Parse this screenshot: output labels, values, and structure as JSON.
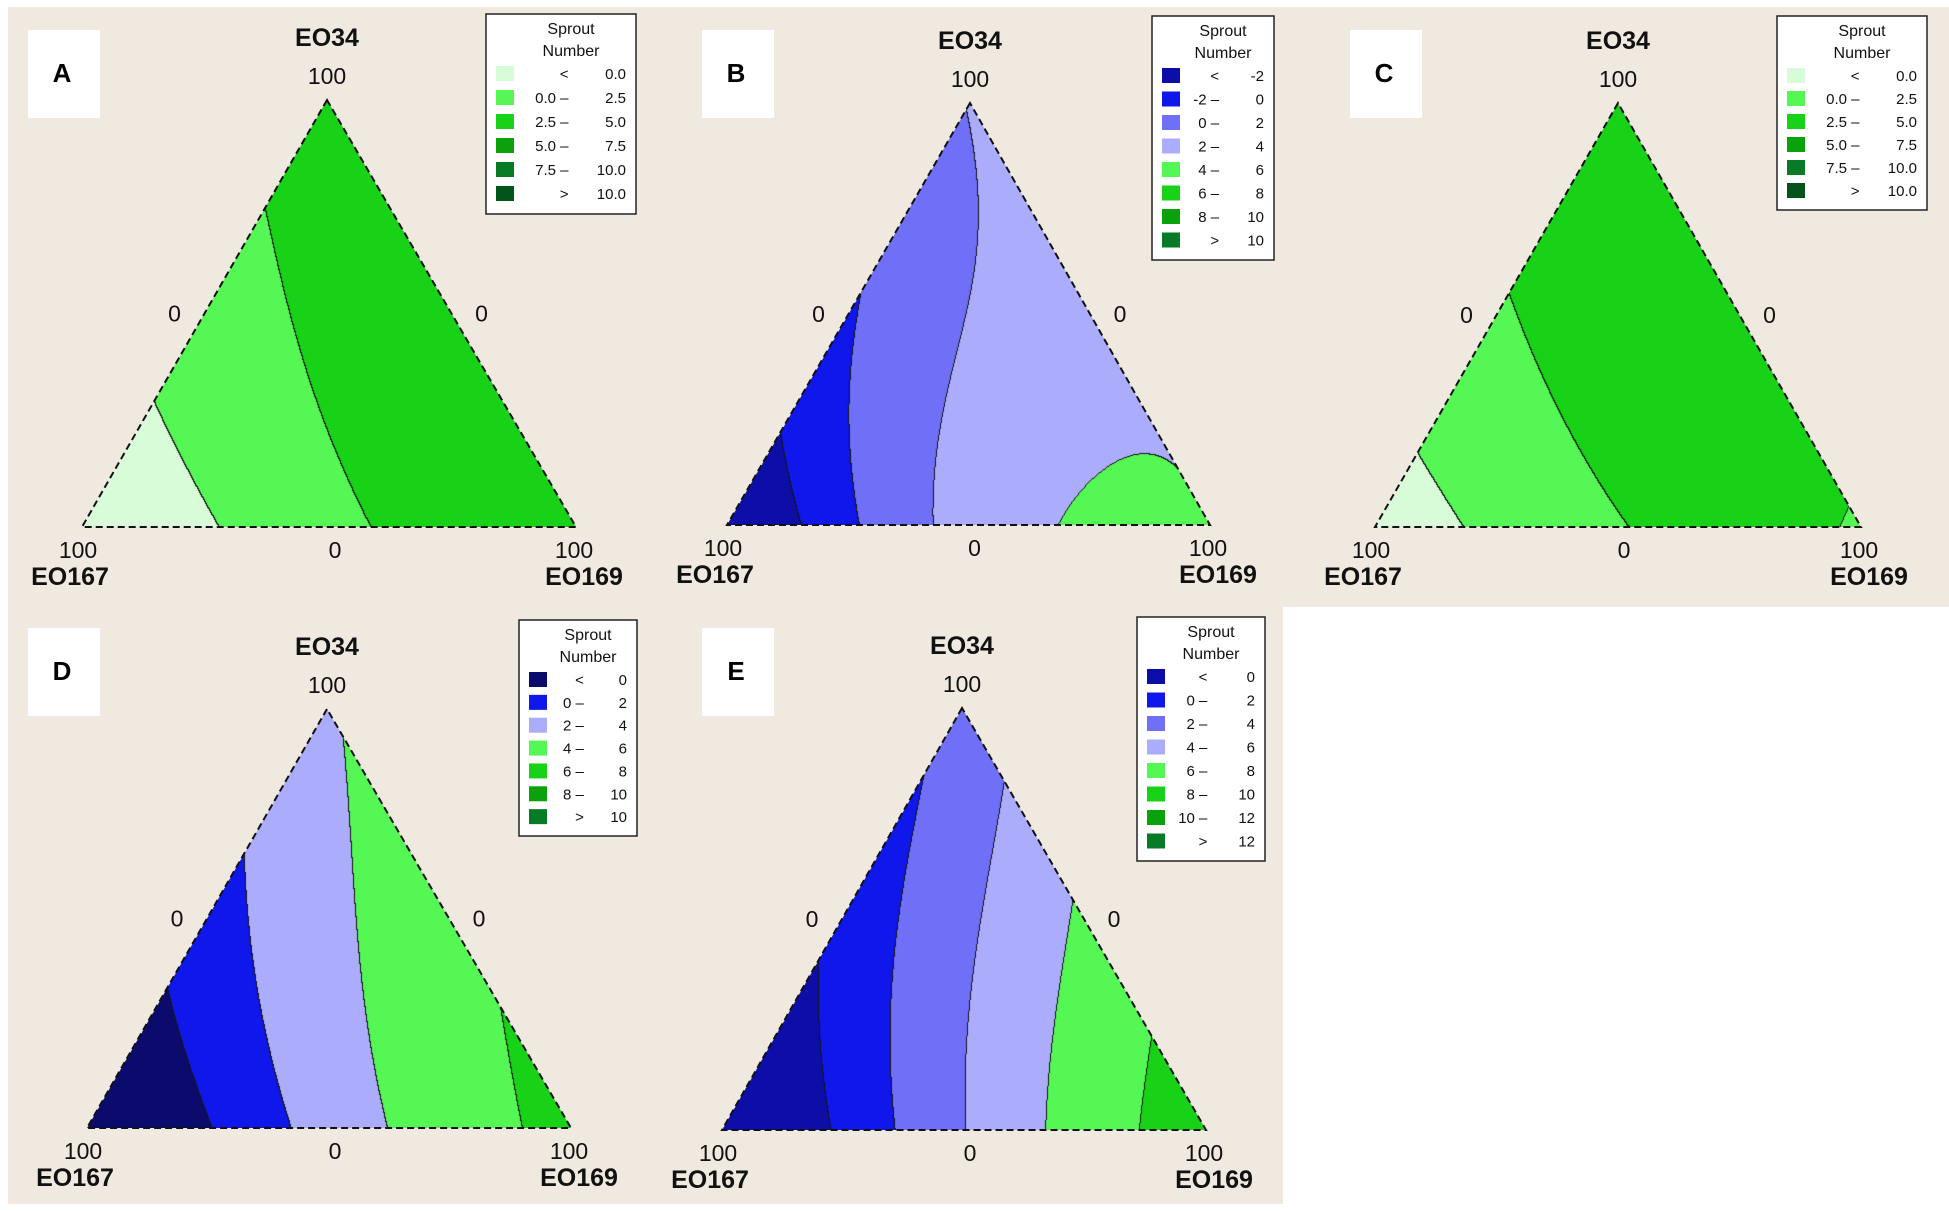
{
  "chart_data": [
    {
      "type": "ternary-contour",
      "panel_label": "A",
      "components": {
        "top": "EO34",
        "left": "EO167",
        "right": "EO169"
      },
      "tick_labels": {
        "top": "100",
        "left_side_mid": "0",
        "right_side_mid": "0",
        "left": "100",
        "bottom_mid": "0",
        "right": "100"
      },
      "legend": {
        "title_lines": [
          "Sprout",
          "Number"
        ],
        "entries": [
          {
            "low": "<",
            "high": "0.0",
            "color": "#d8fcd8"
          },
          {
            "low": "0.0 –",
            "high": "2.5",
            "color": "#55f755"
          },
          {
            "low": "2.5 –",
            "high": "5.0",
            "color": "#17d217"
          },
          {
            "low": "5.0 –",
            "high": "7.5",
            "color": "#0aa10a"
          },
          {
            "low": "7.5 –",
            "high": "10.0",
            "color": "#077a25"
          },
          {
            "low": ">",
            "high": "10.0",
            "color": "#03541a"
          }
        ]
      },
      "surface": {
        "const": 3.5,
        "a": 2.4,
        "b": 6.0,
        "q": 9.0,
        "qc": 0.45
      }
    },
    {
      "type": "ternary-contour",
      "panel_label": "B",
      "components": {
        "top": "EO34",
        "left": "EO167",
        "right": "EO169"
      },
      "tick_labels": {
        "top": "100",
        "left_side_mid": "0",
        "right_side_mid": "0",
        "left": "100",
        "bottom_mid": "0",
        "right": "100"
      },
      "legend": {
        "title_lines": [
          "Sprout",
          "Number"
        ],
        "entries": [
          {
            "low": "<",
            "high": "-2",
            "color": "#0d0ea8"
          },
          {
            "low": "-2 –",
            "high": "0",
            "color": "#0f17ea"
          },
          {
            "low": "0 –",
            "high": "2",
            "color": "#6f70f7"
          },
          {
            "low": "2 –",
            "high": "4",
            "color": "#abacfb"
          },
          {
            "low": "4 –",
            "high": "6",
            "color": "#55f755"
          },
          {
            "low": "6 –",
            "high": "8",
            "color": "#17d217"
          },
          {
            "low": "8 –",
            "high": "10",
            "color": "#0aa10a"
          },
          {
            "low": ">",
            "high": "10",
            "color": "#077a25"
          }
        ]
      },
      "surface": {
        "const": 3.5,
        "a": 2.3,
        "b": 10.5,
        "q": 13.0,
        "qc": 0.55
      }
    },
    {
      "type": "ternary-contour",
      "panel_label": "C",
      "components": {
        "top": "EO34",
        "left": "EO167",
        "right": "EO169"
      },
      "tick_labels": {
        "top": "100",
        "left_side_mid": "0",
        "right_side_mid": "0",
        "left": "100",
        "bottom_mid": "0",
        "right": "100"
      },
      "legend": {
        "title_lines": [
          "Sprout",
          "Number"
        ],
        "entries": [
          {
            "low": "<",
            "high": "0.0",
            "color": "#d8fcd8"
          },
          {
            "low": "0.0 –",
            "high": "2.5",
            "color": "#55f755"
          },
          {
            "low": "2.5 –",
            "high": "5.0",
            "color": "#17d217"
          },
          {
            "low": "5.0 –",
            "high": "7.5",
            "color": "#0aa10a"
          },
          {
            "low": "7.5 –",
            "high": "10.0",
            "color": "#077a25"
          },
          {
            "low": ">",
            "high": "10.0",
            "color": "#03541a"
          }
        ]
      },
      "surface": {
        "const": 4.2,
        "a": 2.6,
        "b": 5.5,
        "q": 9.5,
        "qc": 0.55
      }
    },
    {
      "type": "ternary-contour",
      "panel_label": "D",
      "components": {
        "top": "EO34",
        "left": "EO167",
        "right": "EO169"
      },
      "tick_labels": {
        "top": "100",
        "left_side_mid": "0",
        "right_side_mid": "0",
        "left": "100",
        "bottom_mid": "0",
        "right": "100"
      },
      "legend": {
        "title_lines": [
          "Sprout",
          "Number"
        ],
        "entries": [
          {
            "low": "<",
            "high": "0",
            "color": "#0b0b6e"
          },
          {
            "low": "0 –",
            "high": "2",
            "color": "#0f17ea"
          },
          {
            "low": "2 –",
            "high": "4",
            "color": "#abacfb"
          },
          {
            "low": "4 –",
            "high": "6",
            "color": "#55f755"
          },
          {
            "low": "6 –",
            "high": "8",
            "color": "#17d217"
          },
          {
            "low": "8 –",
            "high": "10",
            "color": "#0aa10a"
          },
          {
            "low": ">",
            "high": "10",
            "color": "#077a25"
          }
        ]
      },
      "surface": {
        "const": 4.2,
        "a": 2.5,
        "b": 8.5,
        "q": 6.0,
        "qc": 0.35
      }
    },
    {
      "type": "ternary-contour",
      "panel_label": "E",
      "components": {
        "top": "EO34",
        "left": "EO167",
        "right": "EO169"
      },
      "tick_labels": {
        "top": "100",
        "left_side_mid": "0",
        "right_side_mid": "0",
        "left": "100",
        "bottom_mid": "0",
        "right": "100"
      },
      "legend": {
        "title_lines": [
          "Sprout",
          "Number"
        ],
        "entries": [
          {
            "low": "<",
            "high": "0",
            "color": "#0d0ea8"
          },
          {
            "low": "0 –",
            "high": "2",
            "color": "#0f17ea"
          },
          {
            "low": "2 –",
            "high": "4",
            "color": "#6f70f7"
          },
          {
            "low": "4 –",
            "high": "6",
            "color": "#abacfb"
          },
          {
            "low": "6 –",
            "high": "8",
            "color": "#55f755"
          },
          {
            "low": "8 –",
            "high": "10",
            "color": "#17d217"
          },
          {
            "low": "10 –",
            "high": "12",
            "color": "#0aa10a"
          },
          {
            "low": ">",
            "high": "12",
            "color": "#077a25"
          }
        ]
      },
      "surface": {
        "const": 4.5,
        "a": 2.0,
        "b": 11.0,
        "q": 5.0,
        "qc": 0.3
      }
    }
  ]
}
